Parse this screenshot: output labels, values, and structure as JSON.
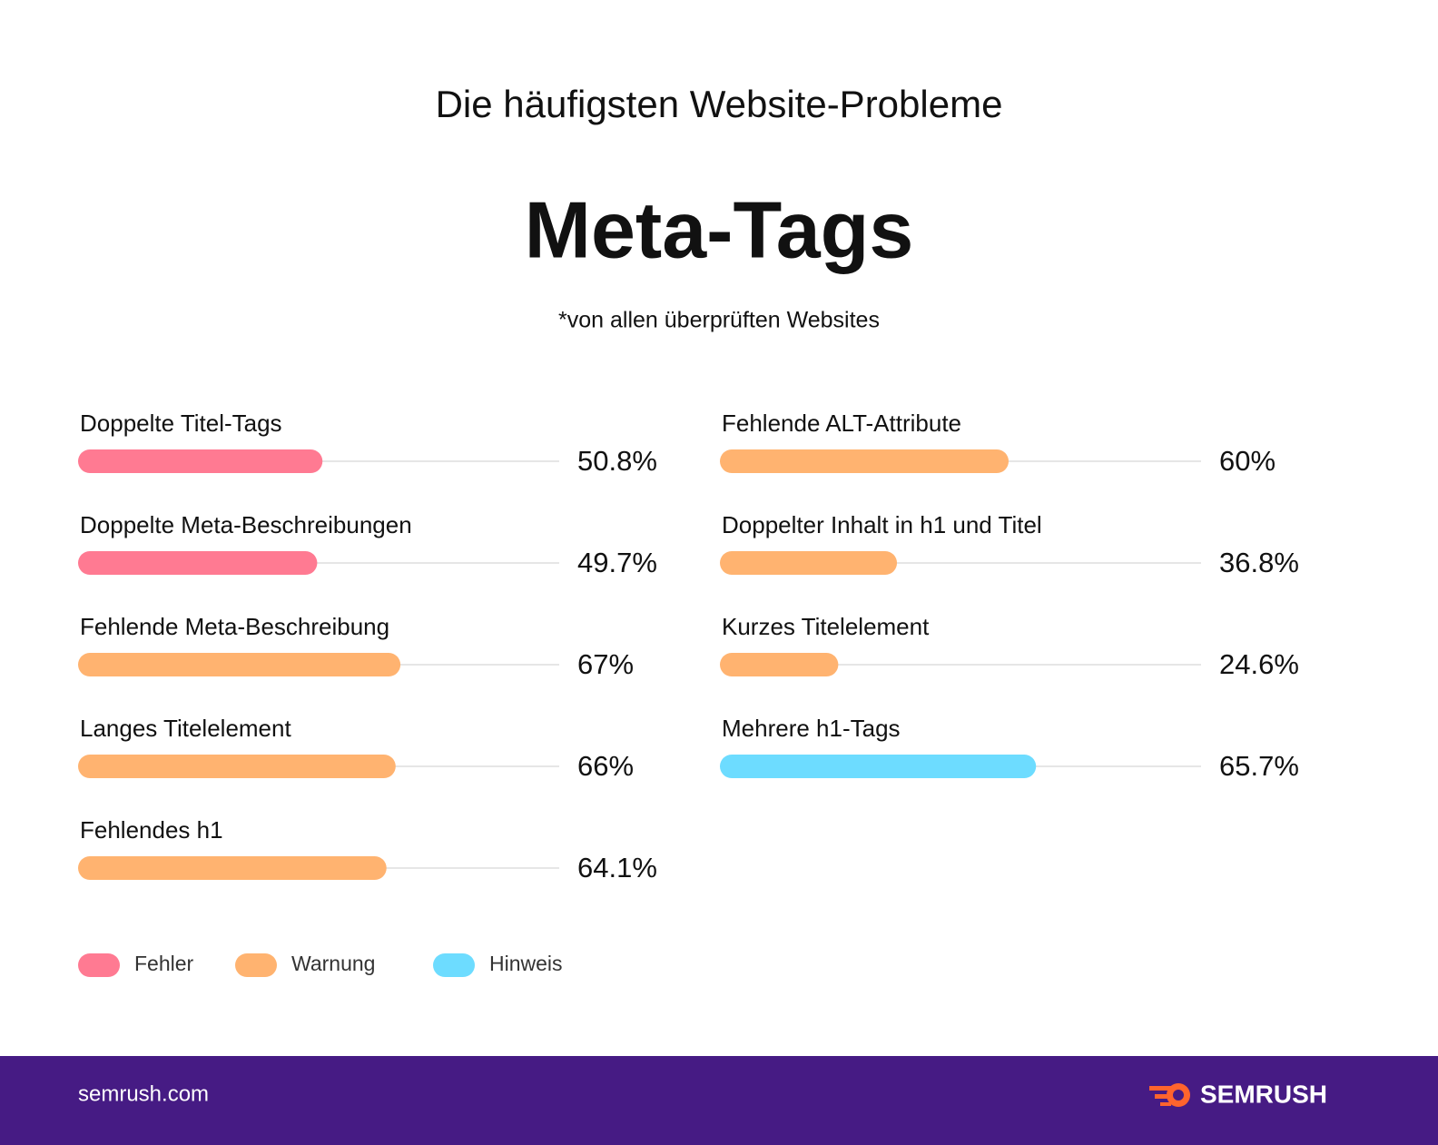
{
  "chart_data": {
    "type": "bar",
    "supertitle": "Die häufigsten Website-Probleme",
    "title": "Meta-Tags",
    "subtitle": "*von allen überprüften Websites",
    "categories": [
      "Doppelte Titel-Tags",
      "Doppelte Meta-Beschreibungen",
      "Fehlende Meta-Beschreibung",
      "Langes Titelelement",
      "Fehlendes h1",
      "Fehlende ALT-Attribute",
      "Doppelter Inhalt in h1 und Titel",
      "Kurzes Titelelement",
      "Mehrere h1-Tags"
    ],
    "values": [
      50.8,
      49.7,
      67,
      66,
      64.1,
      60,
      36.8,
      24.6,
      65.7
    ],
    "value_labels": [
      "50.8%",
      "49.7%",
      "67%",
      "66%",
      "64.1%",
      "60%",
      "36.8%",
      "24.6%",
      "65.7%"
    ],
    "colors": [
      "#ff7a92",
      "#ff7a92",
      "#ffb370",
      "#ffb370",
      "#ffb370",
      "#ffb370",
      "#ffb370",
      "#ffb370",
      "#6ddcff"
    ],
    "xlim": [
      0,
      100
    ],
    "legend": [
      {
        "name": "Fehler",
        "color": "#ff7a92"
      },
      {
        "name": "Warnung",
        "color": "#ffb370"
      },
      {
        "name": "Hinweis",
        "color": "#6ddcff"
      }
    ]
  },
  "footer": {
    "url": "semrush.com",
    "brand": "SEMRUSH"
  }
}
